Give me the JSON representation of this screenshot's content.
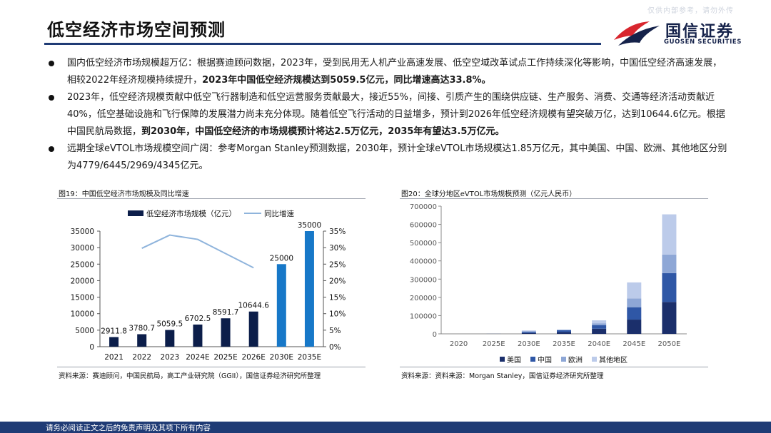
{
  "watermark": "仅供内部参考，请勿外传",
  "title": "低空经济市场空间预测",
  "logo": {
    "cn": "国信证券",
    "en": "GUOSEN SECURITIES"
  },
  "bullets": [
    {
      "segments": [
        {
          "text": "国内低空经济市场规模超万亿：根据赛迪顾问数据，2023年，受到民用无人机产业高速发展、低空空域改革试点工作持续深化等影响，中国低空经济高速发展，相较2022年经济规模持续提升，",
          "bold": false
        },
        {
          "text": "2023年中国低空经济规模达到5059.5亿元，同比增速高达33.8%。",
          "bold": true
        }
      ]
    },
    {
      "segments": [
        {
          "text": "2023年，低空经济规模贡献中低空飞行器制造和低空运营服务贡献最大，接近55%，间接、引质产生的围绕供应链、生产服务、消费、交通等经济活动贡献近40%，低空基础设施和飞行保障的发展潜力尚未充分体现。随着低空飞行活动的日益增多，预计到2026年低空经济规模有望突破万亿，达到10644.6亿元。根据中国民航局数据，",
          "bold": false
        },
        {
          "text": "到2030年，中国低空经济的市场规模预计将达2.5万亿元，2035年有望达3.5万亿元。",
          "bold": true
        }
      ]
    },
    {
      "segments": [
        {
          "text": "远期全球eVTOL市场规模空间广阔：参考Morgan Stanley预测数据，2030年，预计全球eVTOL市场规模达1.85万亿元，其中美国、中国、欧洲、其他地区分别为4779/6445/2969/4345亿元。",
          "bold": false
        }
      ]
    }
  ],
  "fig19": {
    "title": "图19：中国低空经济市场规模及同比增速",
    "source": "资料来源：赛迪顾问，中国民航局，高工产业研究院（GGII），国信证券经济研究所整理"
  },
  "fig20": {
    "title": "图20：全球分地区eVTOL市场规模预测（亿元人民币）",
    "source": "资料来源：资料来源：Morgan Stanley，国信证券经济研究所整理"
  },
  "chart_data": [
    {
      "type": "bar",
      "categories": [
        "2021",
        "2022",
        "2023",
        "2024E",
        "2025E",
        "2026E",
        "2030E",
        "2035E"
      ],
      "series": [
        {
          "name": "低空经济市场规模（亿元）",
          "type": "bar",
          "axis": "left",
          "values": [
            2911.8,
            3780.7,
            5059.5,
            6702.5,
            8591.7,
            10644.6,
            25000,
            35000
          ],
          "labels": [
            "2911.8",
            "3780.7",
            "5059.5",
            "6702.5",
            "8591.7",
            "10644.6",
            "25000",
            "35000"
          ],
          "colors": [
            "#0c1e4a",
            "#0c1e4a",
            "#0c1e4a",
            "#0c1e4a",
            "#0c1e4a",
            "#0c1e4a",
            "#1778c8",
            "#1778c8"
          ]
        },
        {
          "name": "同比增速",
          "type": "line",
          "axis": "right",
          "color": "#8fb4dc",
          "values": [
            null,
            29.8,
            33.8,
            32.5,
            28.2,
            23.9,
            null,
            null
          ]
        }
      ],
      "y_left": {
        "ylim": [
          0,
          35000
        ],
        "ticks": [
          "0",
          "5000",
          "10000",
          "15000",
          "20000",
          "25000",
          "30000",
          "35000"
        ]
      },
      "y_right": {
        "ylim": [
          0,
          35
        ],
        "ticks": [
          "0%",
          "5%",
          "10%",
          "15%",
          "20%",
          "25%",
          "30%",
          "35%"
        ]
      },
      "legend_position": "top",
      "grid": false
    },
    {
      "type": "bar",
      "stacked": true,
      "categories": [
        "2020",
        "2025E",
        "2030E",
        "2035E",
        "2040E",
        "2045E",
        "2050E"
      ],
      "series": [
        {
          "name": "美国",
          "color": "#1b2f6b",
          "values": [
            0,
            200,
            4779,
            10000,
            28000,
            78000,
            175000
          ]
        },
        {
          "name": "中国",
          "color": "#2f57a6",
          "values": [
            0,
            200,
            6445,
            10000,
            20000,
            68000,
            158000
          ]
        },
        {
          "name": "欧洲",
          "color": "#8ea7d6",
          "values": [
            0,
            100,
            2969,
            2000,
            10000,
            48000,
            102000
          ]
        },
        {
          "name": "其他地区",
          "color": "#bccbea",
          "values": [
            0,
            100,
            4345,
            2000,
            16000,
            88000,
            220000
          ]
        }
      ],
      "ylim": [
        0,
        700000
      ],
      "y_ticks": [
        "0",
        "100000",
        "200000",
        "300000",
        "400000",
        "500000",
        "600000",
        "700000"
      ],
      "legend_position": "bottom",
      "grid": false
    }
  ],
  "footer": "请务必阅读正文之后的免责声明及其项下所有内容",
  "colors": {
    "navy": "#1f3b75",
    "logo_red": "#d8262e",
    "logo_navy": "#15224a"
  }
}
